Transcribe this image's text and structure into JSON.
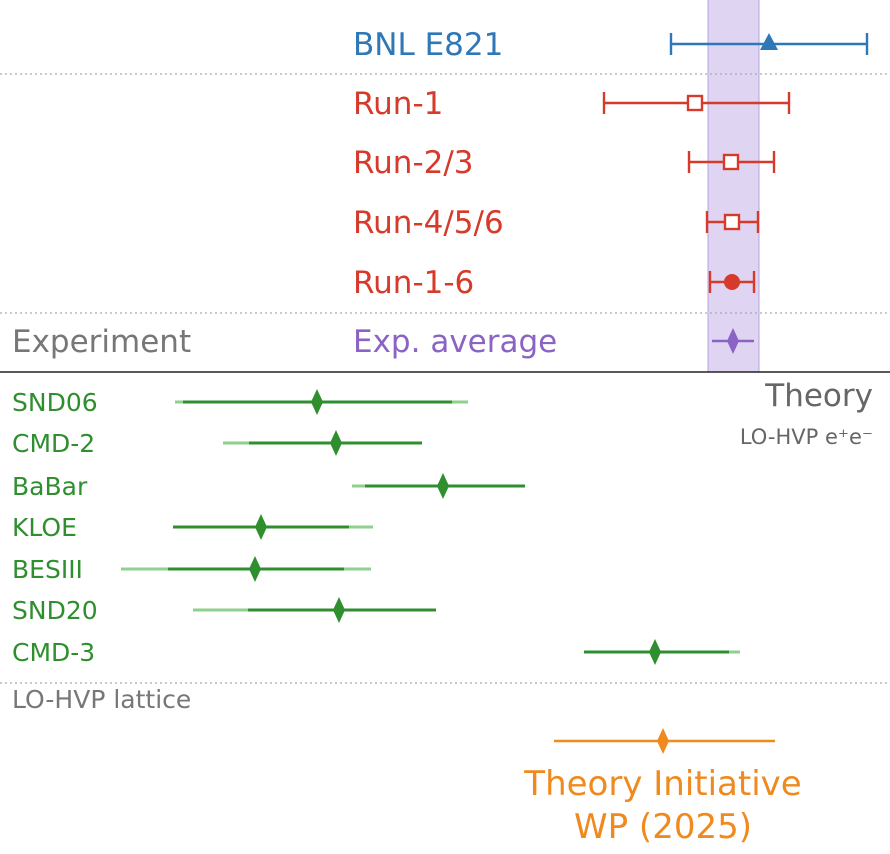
{
  "chart_data": {
    "type": "scatter",
    "colors": {
      "bnl": "#2e78b8",
      "fnal": "#d63a2b",
      "average": "#8a63c4",
      "band": "#d9cef0",
      "green": "#2f8f2f",
      "green_light": "#8fd08f",
      "orange": "#f08a1e",
      "gray": "#777777"
    },
    "xlim": [
      0,
      890
    ],
    "experiment": {
      "section_label": "Experiment",
      "points": [
        {
          "label": "BNL E821",
          "color_key": "bnl",
          "marker": "triangle",
          "value": 769,
          "err": 98
        },
        {
          "label": "Run-1",
          "color_key": "fnal",
          "marker": "open-square",
          "value": 695,
          "err_low": 91,
          "err_high": 94
        },
        {
          "label": "Run-2/3",
          "color_key": "fnal",
          "marker": "open-square",
          "value": 731,
          "err_low": 42,
          "err_high": 43
        },
        {
          "label": "Run-4/5/6",
          "color_key": "fnal",
          "marker": "open-square",
          "value": 732,
          "err_low": 25,
          "err_high": 26
        },
        {
          "label": "Run-1-6",
          "color_key": "fnal",
          "marker": "filled-circle",
          "value": 732,
          "err_low": 22,
          "err_high": 22
        },
        {
          "label": "Exp. average",
          "color_key": "average",
          "marker": "diamond",
          "value": 733,
          "err_low": 21,
          "err_high": 21
        }
      ],
      "average_band": [
        708,
        759
      ]
    },
    "theory_ee": {
      "section_label": "Theory",
      "section_sublabel": "LO-HVP e⁺e⁻",
      "points": [
        {
          "label": "SND06",
          "value": 317,
          "outer": [
            175,
            468
          ],
          "inner": [
            183,
            452
          ]
        },
        {
          "label": "CMD-2",
          "value": 336,
          "outer": [
            223,
            422
          ],
          "inner": [
            249,
            422
          ]
        },
        {
          "label": "BaBar",
          "value": 443,
          "outer": [
            352,
            525
          ],
          "inner": [
            365,
            525
          ]
        },
        {
          "label": "KLOE",
          "value": 261,
          "outer": [
            173,
            373
          ],
          "inner": [
            173,
            349
          ]
        },
        {
          "label": "BESIII",
          "value": 255,
          "outer": [
            121,
            371
          ],
          "inner": [
            168,
            344
          ]
        },
        {
          "label": "SND20",
          "value": 339,
          "outer": [
            193,
            436
          ],
          "inner": [
            248,
            436
          ]
        },
        {
          "label": "CMD-3",
          "value": 655,
          "outer": [
            584,
            740
          ],
          "inner": [
            584,
            729
          ]
        }
      ]
    },
    "theory_lattice": {
      "section_label": "LO-HVP lattice",
      "points": [
        {
          "label_line1": "Theory Initiative",
          "label_line2": "WP (2025)",
          "value": 663,
          "err_low": 109,
          "err_high": 112
        }
      ]
    }
  }
}
